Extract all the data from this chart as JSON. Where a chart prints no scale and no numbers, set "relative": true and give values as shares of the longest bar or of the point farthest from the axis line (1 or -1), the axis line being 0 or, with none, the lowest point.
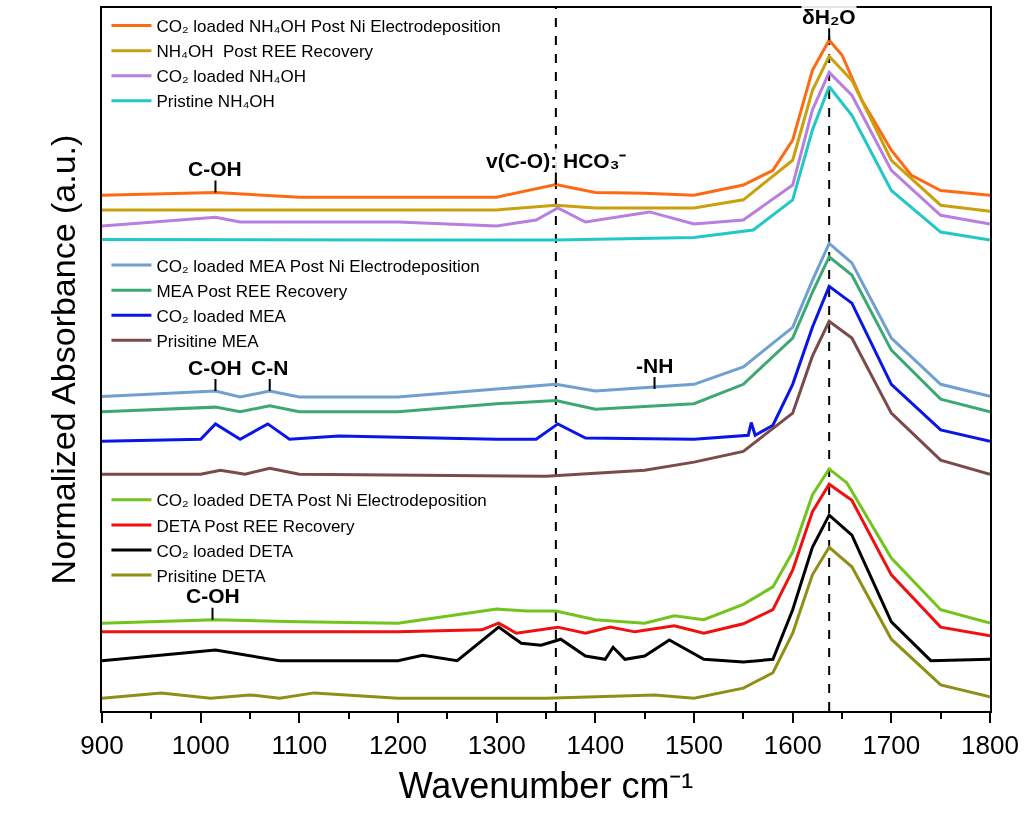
{
  "chart_data": {
    "type": "line",
    "relative": true,
    "xlabel": "Wavenumber cm⁻¹",
    "ylabel": "Normalized Absorbance (a.u.)",
    "xlim": [
      900,
      1800
    ],
    "xticks": [
      900,
      {
        "value": 950,
        "label": null
      },
      1000,
      {
        "value": 1050,
        "label": null
      },
      1100,
      {
        "value": 1150,
        "label": null
      },
      1200,
      {
        "value": 1250,
        "label": null
      },
      1300,
      {
        "value": 1350,
        "label": null
      },
      1400,
      {
        "value": 1450,
        "label": null
      },
      1500,
      {
        "value": 1550,
        "label": null
      },
      1600,
      {
        "value": 1650,
        "label": null
      },
      1700,
      {
        "value": 1750,
        "label": null
      },
      1800
    ],
    "grid": false,
    "legend": "top left",
    "tick_labels": "x",
    "line_style": "solid",
    "series": [
      {
        "name": "CO₂ loaded NH₄OH Post Ni Electrodeposition",
        "color": "#fe6a14",
        "x": [
          900,
          1015,
          1100,
          1300,
          1360,
          1400,
          1450,
          1500,
          1550,
          1580,
          1600,
          1620,
          1637,
          1650,
          1670,
          1700,
          1720,
          1750,
          1800
        ],
        "values": [
          0.769,
          0.773,
          0.766,
          0.766,
          0.785,
          0.773,
          0.772,
          0.769,
          0.784,
          0.806,
          0.851,
          0.955,
          1,
          0.978,
          0.911,
          0.836,
          0.799,
          0.776,
          0.769
        ]
      },
      {
        "name": "NH₄OH  Post REE Recovery",
        "color": "#c9a00e",
        "x": [
          900,
          1300,
          1360,
          1400,
          1500,
          1550,
          1600,
          1620,
          1637,
          1660,
          1700,
          1750,
          1800
        ],
        "values": [
          0.747,
          0.747,
          0.754,
          0.75,
          0.75,
          0.762,
          0.821,
          0.925,
          0.976,
          0.94,
          0.821,
          0.754,
          0.745
        ]
      },
      {
        "name": "CO₂ loaded NH₄OH",
        "color": "#b87ee0",
        "x": [
          900,
          1015,
          1040,
          1200,
          1300,
          1340,
          1362,
          1390,
          1455,
          1500,
          1550,
          1600,
          1620,
          1637,
          1660,
          1700,
          1750,
          1800
        ],
        "values": [
          0.723,
          0.736,
          0.729,
          0.729,
          0.723,
          0.732,
          0.75,
          0.729,
          0.744,
          0.726,
          0.732,
          0.784,
          0.896,
          0.952,
          0.918,
          0.806,
          0.739,
          0.726
        ]
      },
      {
        "name": "Pristine NH₄OH",
        "color": "#22c7c7",
        "x": [
          900,
          1200,
          1360,
          1500,
          1560,
          1600,
          1620,
          1637,
          1660,
          1700,
          1750,
          1800
        ],
        "values": [
          0.703,
          0.702,
          0.702,
          0.706,
          0.717,
          0.762,
          0.866,
          0.931,
          0.888,
          0.776,
          0.714,
          0.702
        ]
      },
      {
        "name": "CO₂ loaded MEA Post Ni Electrodeposition",
        "color": "#6fa0d0",
        "x": [
          900,
          1015,
          1040,
          1070,
          1100,
          1200,
          1300,
          1360,
          1400,
          1500,
          1550,
          1600,
          1620,
          1637,
          1660,
          1700,
          1750,
          1800
        ],
        "values": [
          0.469,
          0.477,
          0.468,
          0.477,
          0.468,
          0.468,
          0.48,
          0.487,
          0.477,
          0.487,
          0.513,
          0.572,
          0.642,
          0.697,
          0.668,
          0.556,
          0.487,
          0.469
        ]
      },
      {
        "name": "MEA Post REE Recovery",
        "color": "#3da874",
        "x": [
          900,
          1015,
          1040,
          1070,
          1100,
          1200,
          1300,
          1360,
          1400,
          1500,
          1550,
          1600,
          1620,
          1637,
          1660,
          1700,
          1750,
          1800
        ],
        "values": [
          0.446,
          0.453,
          0.446,
          0.455,
          0.446,
          0.446,
          0.458,
          0.463,
          0.45,
          0.458,
          0.487,
          0.556,
          0.624,
          0.677,
          0.65,
          0.538,
          0.465,
          0.446
        ]
      },
      {
        "name": "CO₂ loaded MEA",
        "color": "#0a16e8",
        "x": [
          900,
          1000,
          1015,
          1040,
          1068,
          1090,
          1140,
          1300,
          1340,
          1362,
          1390,
          1500,
          1555,
          1558,
          1562,
          1580,
          1600,
          1620,
          1637,
          1660,
          1700,
          1750,
          1800
        ],
        "values": [
          0.402,
          0.405,
          0.428,
          0.405,
          0.428,
          0.405,
          0.41,
          0.405,
          0.405,
          0.428,
          0.407,
          0.405,
          0.411,
          0.43,
          0.411,
          0.426,
          0.487,
          0.572,
          0.633,
          0.608,
          0.487,
          0.419,
          0.402
        ]
      },
      {
        "name": "Prisitine MEA",
        "color": "#7b4a4a",
        "x": [
          900,
          1000,
          1020,
          1045,
          1070,
          1100,
          1350,
          1450,
          1500,
          1550,
          1600,
          1620,
          1637,
          1660,
          1700,
          1750,
          1800
        ],
        "values": [
          0.353,
          0.353,
          0.359,
          0.353,
          0.362,
          0.353,
          0.35,
          0.359,
          0.371,
          0.387,
          0.444,
          0.529,
          0.581,
          0.556,
          0.444,
          0.374,
          0.353
        ]
      },
      {
        "name": "CO₂ loaded DETA Post Ni Electrodeposition",
        "color": "#72c41c",
        "x": [
          900,
          1015,
          1100,
          1200,
          1300,
          1330,
          1360,
          1400,
          1450,
          1480,
          1510,
          1550,
          1580,
          1600,
          1620,
          1637,
          1655,
          1700,
          1750,
          1800
        ],
        "values": [
          0.131,
          0.136,
          0.133,
          0.131,
          0.152,
          0.149,
          0.149,
          0.136,
          0.131,
          0.142,
          0.136,
          0.159,
          0.185,
          0.237,
          0.322,
          0.361,
          0.34,
          0.228,
          0.151,
          0.131
        ]
      },
      {
        "name": "DETA Post REE Recovery",
        "color": "#f01010",
        "x": [
          900,
          1200,
          1285,
          1302,
          1320,
          1362,
          1390,
          1415,
          1440,
          1480,
          1510,
          1550,
          1580,
          1600,
          1620,
          1637,
          1660,
          1700,
          1750,
          1800
        ],
        "values": [
          0.118,
          0.118,
          0.121,
          0.131,
          0.116,
          0.125,
          0.116,
          0.125,
          0.118,
          0.127,
          0.116,
          0.13,
          0.151,
          0.21,
          0.297,
          0.338,
          0.314,
          0.203,
          0.125,
          0.112
        ]
      },
      {
        "name": "CO₂ loaded DETA",
        "color": "#000000",
        "x": [
          900,
          1015,
          1080,
          1200,
          1225,
          1260,
          1302,
          1325,
          1345,
          1365,
          1390,
          1410,
          1418,
          1430,
          1450,
          1475,
          1510,
          1550,
          1580,
          1600,
          1620,
          1637,
          1660,
          1700,
          1740,
          1800
        ],
        "values": [
          0.075,
          0.091,
          0.075,
          0.075,
          0.083,
          0.075,
          0.125,
          0.101,
          0.098,
          0.107,
          0.082,
          0.077,
          0.095,
          0.077,
          0.082,
          0.106,
          0.077,
          0.073,
          0.077,
          0.151,
          0.244,
          0.292,
          0.262,
          0.133,
          0.075,
          0.077
        ]
      },
      {
        "name": "Prisitine DETA",
        "color": "#8f8f18",
        "x": [
          900,
          960,
          1010,
          1050,
          1080,
          1115,
          1200,
          1350,
          1460,
          1500,
          1550,
          1580,
          1600,
          1620,
          1637,
          1660,
          1700,
          1750,
          1800
        ],
        "values": [
          0.019,
          0.027,
          0.019,
          0.024,
          0.019,
          0.027,
          0.019,
          0.019,
          0.024,
          0.019,
          0.034,
          0.057,
          0.116,
          0.203,
          0.244,
          0.215,
          0.107,
          0.039,
          0.021
        ]
      }
    ],
    "ref_lines": [
      {
        "axis": "x",
        "value": 1360,
        "line_style": "dashed",
        "color": "#000000"
      },
      {
        "axis": "x",
        "value": 1637,
        "line_style": "dashed",
        "color": "#000000"
      }
    ],
    "annotations": [
      {
        "text": "δH₂O",
        "x": 1637,
        "y": 1
      },
      {
        "text": "C-OH",
        "x": 1015,
        "y": 0.773
      },
      {
        "text": "v(C-O): HCO₃⁻",
        "x": 1360,
        "y": 0.785
      },
      {
        "text": "C-OH",
        "x": 1015,
        "y": 0.477
      },
      {
        "text": "C-N",
        "x": 1070,
        "y": 0.477
      },
      {
        "text": "-NH",
        "x": 1460,
        "y": 0.48
      },
      {
        "text": "C-OH",
        "x": 1012,
        "y": 0.136
      }
    ]
  }
}
